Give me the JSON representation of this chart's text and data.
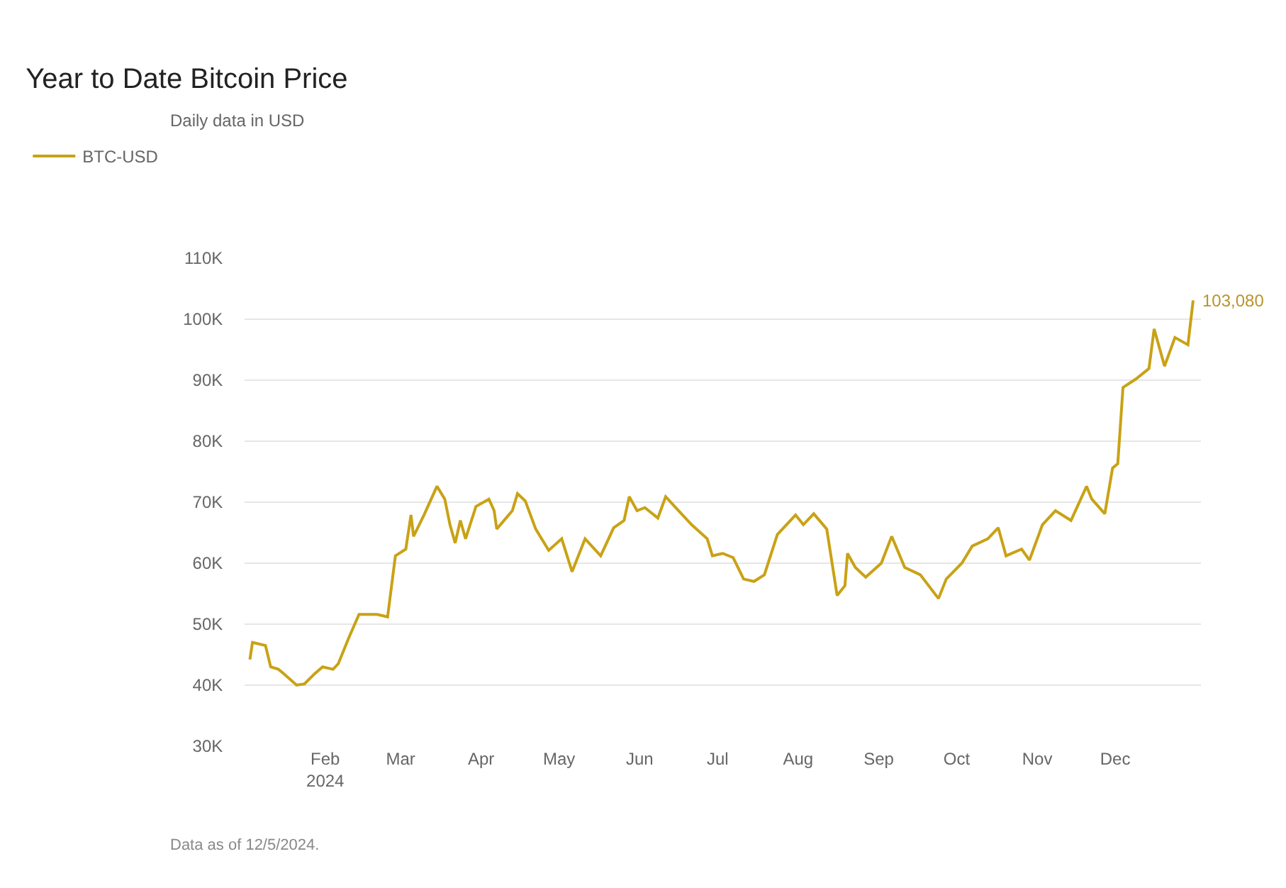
{
  "chart_data": {
    "type": "line",
    "title": "Year to Date Bitcoin Price",
    "subtitle": "Daily data in USD",
    "x": [
      "2024-01-03",
      "2024-01-04",
      "2024-01-09",
      "2024-01-11",
      "2024-01-14",
      "2024-01-16",
      "2024-01-21",
      "2024-01-24",
      "2024-01-28",
      "2024-01-31",
      "2024-02-04",
      "2024-02-06",
      "2024-02-10",
      "2024-02-14",
      "2024-02-21",
      "2024-02-25",
      "2024-02-28",
      "2024-03-03",
      "2024-03-05",
      "2024-03-06",
      "2024-03-10",
      "2024-03-15",
      "2024-03-18",
      "2024-03-20",
      "2024-03-22",
      "2024-03-24",
      "2024-03-26",
      "2024-03-30",
      "2024-04-04",
      "2024-04-06",
      "2024-04-07",
      "2024-04-13",
      "2024-04-15",
      "2024-04-18",
      "2024-04-22",
      "2024-04-27",
      "2024-05-02",
      "2024-05-06",
      "2024-05-11",
      "2024-05-17",
      "2024-05-22",
      "2024-05-26",
      "2024-05-28",
      "2024-05-31",
      "2024-06-03",
      "2024-06-08",
      "2024-06-11",
      "2024-06-16",
      "2024-06-21",
      "2024-06-27",
      "2024-06-29",
      "2024-07-03",
      "2024-07-07",
      "2024-07-11",
      "2024-07-15",
      "2024-07-19",
      "2024-07-24",
      "2024-07-31",
      "2024-08-03",
      "2024-08-07",
      "2024-08-12",
      "2024-08-16",
      "2024-08-19",
      "2024-08-20",
      "2024-08-23",
      "2024-08-27",
      "2024-09-02",
      "2024-09-06",
      "2024-09-11",
      "2024-09-17",
      "2024-09-24",
      "2024-09-27",
      "2024-10-03",
      "2024-10-07",
      "2024-10-13",
      "2024-10-17",
      "2024-10-20",
      "2024-10-26",
      "2024-10-29",
      "2024-11-03",
      "2024-11-08",
      "2024-11-14",
      "2024-11-20",
      "2024-11-22",
      "2024-11-27",
      "2024-11-30",
      "2024-12-02",
      "2024-12-04",
      "2024-12-09",
      "2024-12-14",
      "2024-12-16",
      "2024-12-20",
      "2024-12-24",
      "2024-12-29",
      "2024-12-31"
    ],
    "series": [
      {
        "name": "BTC-USD",
        "color": "#c9a215",
        "values": [
          44200,
          47000,
          46500,
          43000,
          42600,
          41900,
          40000,
          40200,
          41900,
          43000,
          42600,
          43500,
          47700,
          51600,
          51600,
          51200,
          61200,
          62300,
          67900,
          64400,
          67900,
          72600,
          70500,
          66300,
          63300,
          67000,
          64000,
          69300,
          70500,
          68600,
          65600,
          68600,
          71400,
          70200,
          65600,
          62100,
          64000,
          58600,
          64000,
          61200,
          65800,
          67000,
          70900,
          68600,
          69100,
          67400,
          70900,
          68600,
          66300,
          64000,
          61200,
          61600,
          60900,
          57400,
          57000,
          58100,
          64700,
          67900,
          66300,
          68100,
          65600,
          54700,
          56300,
          61600,
          59300,
          57700,
          60000,
          64400,
          59300,
          58100,
          54200,
          57400,
          60000,
          62800,
          64000,
          65800,
          61200,
          62300,
          60500,
          66300,
          68600,
          67000,
          72600,
          70500,
          68100,
          75600,
          76300,
          88800,
          90200,
          91900,
          98400,
          92300,
          97000,
          95800,
          103080
        ]
      }
    ],
    "xlim": [
      "2024-01-01",
      "2025-01-03"
    ],
    "xticks": [
      {
        "value": "2024-02-01",
        "label": "Feb\n2024"
      },
      {
        "value": "2024-03-01",
        "label": "Mar"
      },
      {
        "value": "2024-04-01",
        "label": "Apr"
      },
      {
        "value": "2024-05-01",
        "label": "May"
      },
      {
        "value": "2024-06-01",
        "label": "Jun"
      },
      {
        "value": "2024-07-01",
        "label": "Jul"
      },
      {
        "value": "2024-08-01",
        "label": "Aug"
      },
      {
        "value": "2024-09-01",
        "label": "Sep"
      },
      {
        "value": "2024-10-01",
        "label": "Oct"
      },
      {
        "value": "2024-11-01",
        "label": "Nov"
      },
      {
        "value": "2024-12-01",
        "label": "Dec"
      }
    ],
    "ylim": [
      30000,
      110000
    ],
    "yticks": [
      {
        "value": 30000,
        "label": "30K"
      },
      {
        "value": 40000,
        "label": "40K"
      },
      {
        "value": 50000,
        "label": "50K"
      },
      {
        "value": 60000,
        "label": "60K"
      },
      {
        "value": 70000,
        "label": "70K"
      },
      {
        "value": 80000,
        "label": "80K"
      },
      {
        "value": 90000,
        "label": "90K"
      },
      {
        "value": 100000,
        "label": "100K"
      },
      {
        "value": 110000,
        "label": "110K"
      }
    ],
    "grid": "y",
    "legend": "top left",
    "marker": "none",
    "line_style": "solid",
    "annotations": [
      {
        "text": "103,080",
        "x": "2024-12-31",
        "y": 103080
      },
      "Data as of 12/5/2024."
    ]
  }
}
